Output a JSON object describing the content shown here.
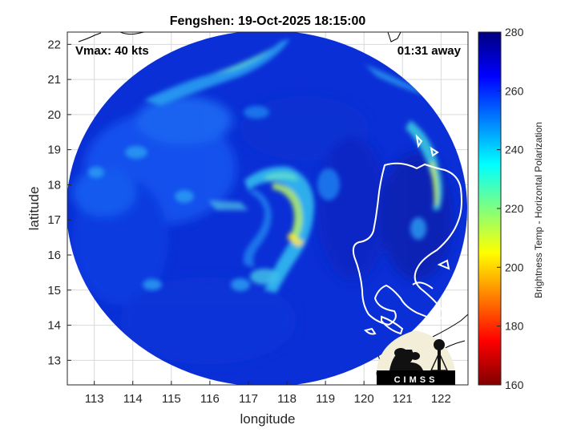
{
  "header": {
    "title": "Fengshen: 19-Oct-2025 18:15:00",
    "vmax": "Vmax: 40 kts",
    "time_away": "01:31 away"
  },
  "logo": {
    "text": "CIMSS"
  },
  "chart_data": {
    "type": "heatmap",
    "title": "Fengshen: 19-Oct-2025 18:15:00",
    "xlabel": "longitude",
    "ylabel": "latitude",
    "xlim": [
      112.3,
      122.7
    ],
    "ylim": [
      12.3,
      22.35
    ],
    "x_ticks": [
      113,
      114,
      115,
      116,
      117,
      118,
      119,
      120,
      121,
      122
    ],
    "y_ticks": [
      13,
      14,
      15,
      16,
      17,
      18,
      19,
      20,
      21,
      22
    ],
    "grid": true,
    "storm_center": {
      "lon": 117.8,
      "lat": 17.1
    },
    "colorbar": {
      "label": "Brightness Temp - Horizontal Polarization",
      "min": 160,
      "max": 280,
      "ticks": [
        160,
        180,
        200,
        220,
        240,
        260,
        280
      ],
      "colormap": "jet"
    }
  },
  "colors": {
    "background": "#0a2fd6",
    "coastline": "#ffffff",
    "outside_coast": "#000000"
  }
}
